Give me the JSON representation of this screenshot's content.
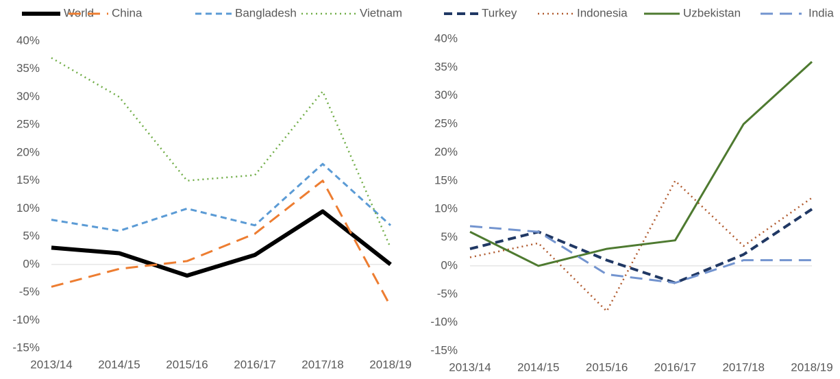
{
  "chart_data": [
    {
      "type": "line",
      "categories": [
        "2013/14",
        "2014/15",
        "2015/16",
        "2016/17",
        "2017/18",
        "2018/19"
      ],
      "ylim": [
        -15,
        40
      ],
      "yticks": [
        {
          "value": -15,
          "label": "-15%"
        },
        {
          "value": -10,
          "label": "-10%"
        },
        {
          "value": -5,
          "label": "-5%"
        },
        {
          "value": 0,
          "label": "0%"
        },
        {
          "value": 5,
          "label": "5%"
        },
        {
          "value": 10,
          "label": "10%"
        },
        {
          "value": 15,
          "label": "15%"
        },
        {
          "value": 20,
          "label": "20%"
        },
        {
          "value": 25,
          "label": "25%"
        },
        {
          "value": 30,
          "label": "30%"
        },
        {
          "value": 35,
          "label": "35%"
        },
        {
          "value": 40,
          "label": "40%"
        }
      ],
      "legend": "top",
      "series": [
        {
          "name": "World",
          "color": "#000000",
          "style": "thick",
          "values": [
            3,
            2,
            -2,
            1.7,
            9.5,
            0
          ]
        },
        {
          "name": "China",
          "color": "#ed7d31",
          "style": "longdash",
          "values": [
            -4,
            -0.8,
            0.6,
            5.5,
            15,
            -7.5
          ]
        },
        {
          "name": "Bangladesh",
          "color": "#5b9bd5",
          "style": "dashed",
          "values": [
            8,
            6,
            10,
            7,
            18,
            7
          ]
        },
        {
          "name": "Vietnam",
          "color": "#70ad47",
          "style": "dotted",
          "values": [
            37,
            30,
            15,
            16,
            31,
            3
          ]
        }
      ]
    },
    {
      "type": "line",
      "categories": [
        "2013/14",
        "2014/15",
        "2015/16",
        "2016/17",
        "2017/18",
        "2018/19"
      ],
      "ylim": [
        -15,
        40
      ],
      "yticks": [
        {
          "value": -15,
          "label": "-15%"
        },
        {
          "value": -10,
          "label": "-10%"
        },
        {
          "value": -5,
          "label": "-5%"
        },
        {
          "value": 0,
          "label": "0%"
        },
        {
          "value": 5,
          "label": "5%"
        },
        {
          "value": 10,
          "label": "10%"
        },
        {
          "value": 15,
          "label": "15%"
        },
        {
          "value": 20,
          "label": "20%"
        },
        {
          "value": 25,
          "label": "25%"
        },
        {
          "value": 30,
          "label": "30%"
        },
        {
          "value": 35,
          "label": "35%"
        },
        {
          "value": 40,
          "label": "40%"
        }
      ],
      "legend": "top",
      "series": [
        {
          "name": "Turkey",
          "color": "#203864",
          "style": "boldDash",
          "values": [
            3,
            6,
            1,
            -3,
            2,
            10
          ]
        },
        {
          "name": "Indonesia",
          "color": "#b05a2e",
          "style": "dotted",
          "values": [
            1.5,
            4,
            -8,
            15,
            3.5,
            12
          ]
        },
        {
          "name": "Uzbekistan",
          "color": "#4e7a30",
          "style": "solid",
          "values": [
            6,
            0,
            3,
            4.5,
            25,
            36
          ]
        },
        {
          "name": "India",
          "color": "#7394cf",
          "style": "longdash",
          "values": [
            7,
            6,
            -1.5,
            -3,
            1,
            1
          ]
        }
      ]
    }
  ]
}
